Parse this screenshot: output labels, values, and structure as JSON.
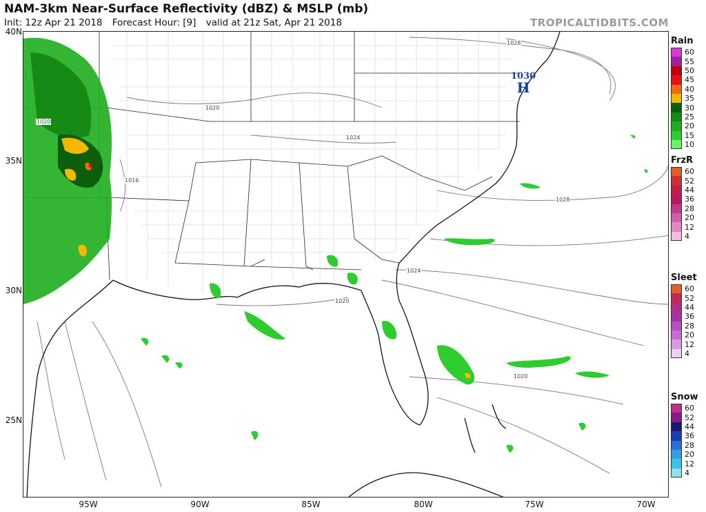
{
  "header": {
    "title": "NAM-3km Near-Surface Reflectivity (dBZ) & MSLP (mb)",
    "init": "Init: 12z Apr 21 2018",
    "forecast_hour": "Forecast Hour: [9]",
    "valid": "valid at 21z Sat, Apr 21 2018",
    "credit": "TROPICALTIDBITS.COM"
  },
  "axes": {
    "lat_labels": [
      "40N",
      "35N",
      "30N",
      "25N"
    ],
    "lon_labels": [
      "95W",
      "90W",
      "85W",
      "80W",
      "75W",
      "70W"
    ]
  },
  "pressure_center": {
    "value": "1030",
    "symbol": "H",
    "color": "#1a3fa0"
  },
  "isobar_labels": [
    "1028",
    "1020",
    "1016",
    "1024",
    "1028",
    "1024",
    "1020",
    "1020",
    "1020"
  ],
  "legends": [
    {
      "title": "Rain",
      "values": [
        "60",
        "55",
        "50",
        "45",
        "40",
        "35",
        "30",
        "25",
        "20",
        "15",
        "10"
      ],
      "colors": [
        "#d83cd8",
        "#a020a0",
        "#c00000",
        "#e81010",
        "#f26a10",
        "#f5b800",
        "#0b5e0b",
        "#158a15",
        "#1eae1e",
        "#2fcc2f",
        "#6ef06e"
      ]
    },
    {
      "title": "FrzR",
      "values": [
        "60",
        "52",
        "44",
        "36",
        "28",
        "20",
        "12",
        "4"
      ],
      "colors": [
        "#e0602a",
        "#cc3030",
        "#c02048",
        "#b81860",
        "#c03a88",
        "#d060a6",
        "#e088c0",
        "#f3c0dc"
      ]
    },
    {
      "title": "Sleet",
      "values": [
        "60",
        "52",
        "44",
        "36",
        "28",
        "20",
        "12",
        "4"
      ],
      "colors": [
        "#e0602a",
        "#c0285a",
        "#b52c8a",
        "#a532a8",
        "#b84fc0",
        "#c66ed0",
        "#d99ae0",
        "#efd0f2"
      ]
    },
    {
      "title": "Snow",
      "values": [
        "60",
        "52",
        "44",
        "36",
        "28",
        "20",
        "12",
        "4"
      ],
      "colors": [
        "#c0308a",
        "#8a1a8a",
        "#1a1a6a",
        "#1a3fb5",
        "#2870d8",
        "#2fa0e0",
        "#3cc3e0",
        "#8fe3ef"
      ]
    }
  ]
}
